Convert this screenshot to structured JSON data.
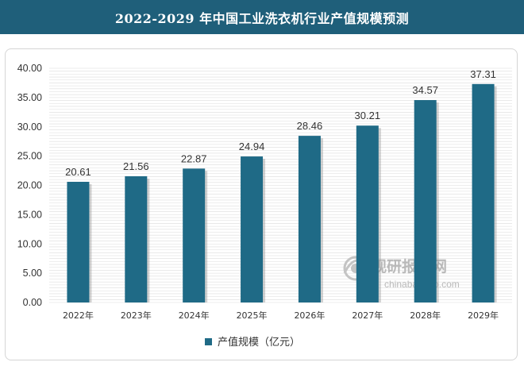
{
  "header": {
    "title": "2022-2029 年中国工业洗衣机行业产值规模预测"
  },
  "watermark": {
    "name": "观研报告网",
    "url": "chinabaogao.com"
  },
  "colors": {
    "header_bg": "#1f5f7a",
    "bar": "#1f6a86",
    "grid": "#dcdcdc"
  },
  "chart_data": {
    "type": "bar",
    "categories": [
      "2022年",
      "2023年",
      "2024年",
      "2025年",
      "2026年",
      "2027年",
      "2028年",
      "2029年"
    ],
    "series": [
      {
        "name": "产值规模（亿元）",
        "values": [
          20.61,
          21.56,
          22.87,
          24.94,
          28.46,
          30.21,
          34.57,
          37.31
        ]
      }
    ],
    "y_ticks": [
      "0.00",
      "5.00",
      "10.00",
      "15.00",
      "20.00",
      "25.00",
      "30.00",
      "35.00",
      "40.00"
    ],
    "ylim": [
      0,
      40
    ],
    "grid": true,
    "legend_position": "bottom"
  }
}
